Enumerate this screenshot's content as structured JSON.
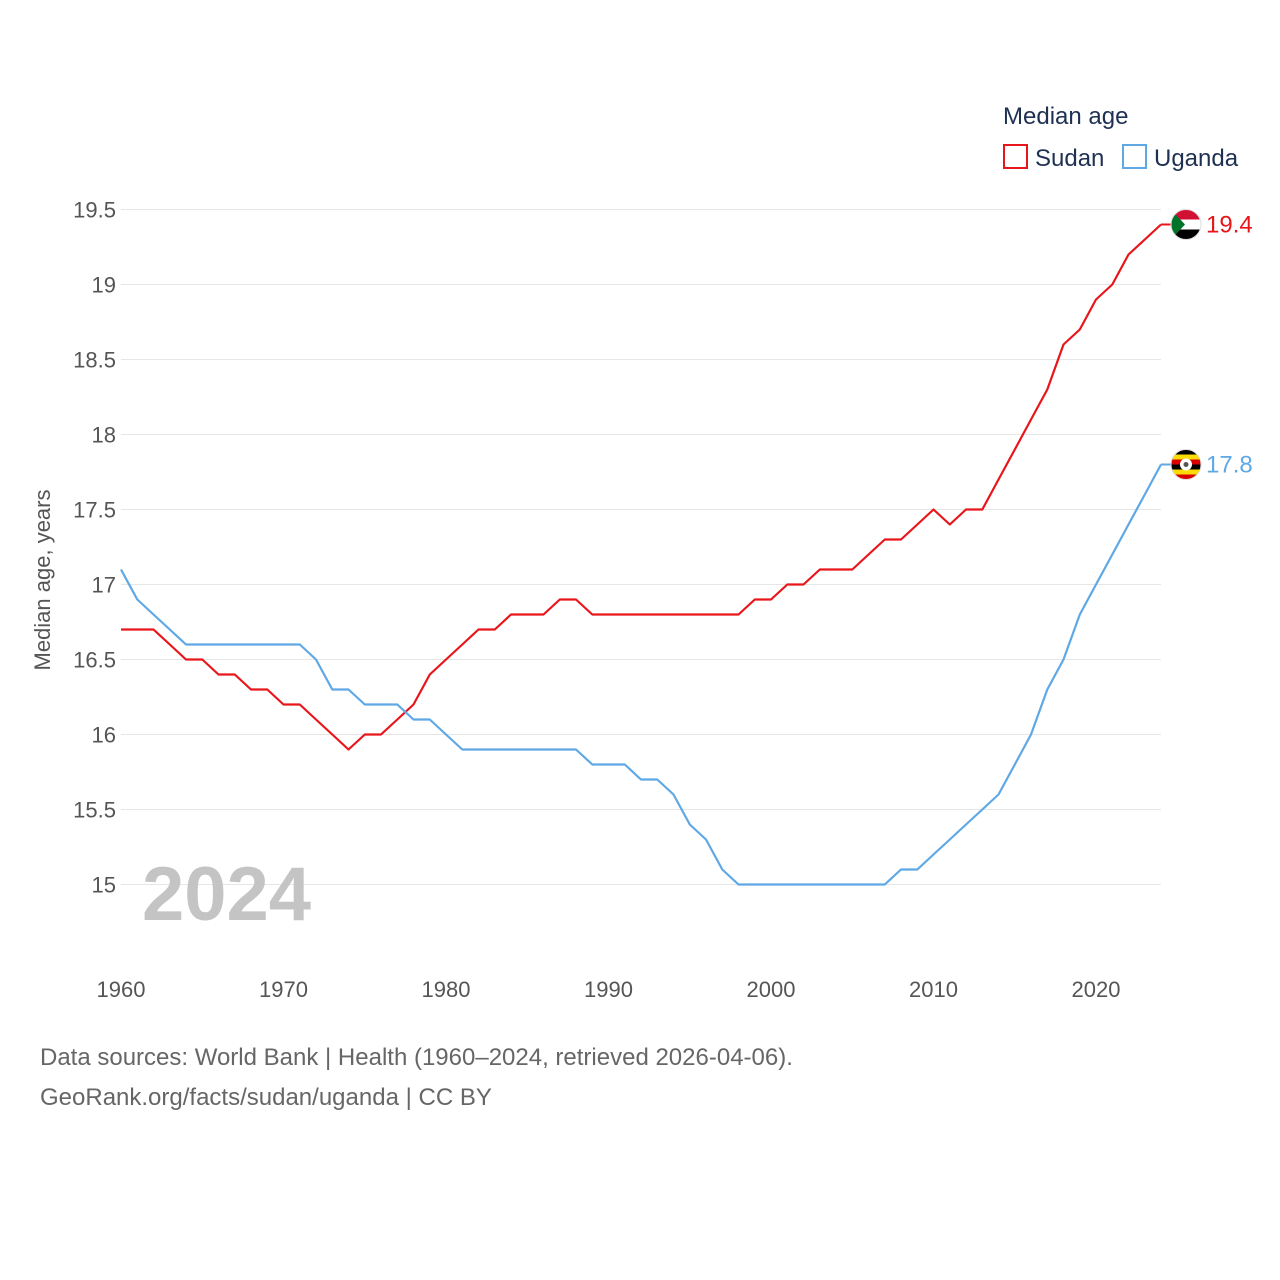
{
  "chart_data": {
    "type": "line",
    "legend_title": "Median age",
    "ylabel": "Median age, years",
    "xlabel": "",
    "xlim": [
      1960,
      2024
    ],
    "ylim": [
      14.67,
      19.67
    ],
    "x_ticks": [
      1960,
      1970,
      1980,
      1990,
      2000,
      2010,
      2020
    ],
    "y_ticks": [
      15,
      15.5,
      16,
      16.5,
      17,
      17.5,
      18,
      18.5,
      19,
      19.5
    ],
    "y_tick_labels": [
      "15",
      "15.5",
      "16",
      "16.5",
      "17",
      "17.5",
      "18",
      "18.5",
      "19",
      "19.5"
    ],
    "grid": true,
    "legend_position": "top-right",
    "watermark_year": "2024",
    "x": [
      1960,
      1961,
      1962,
      1963,
      1964,
      1965,
      1966,
      1967,
      1968,
      1969,
      1970,
      1971,
      1972,
      1973,
      1974,
      1975,
      1976,
      1977,
      1978,
      1979,
      1980,
      1981,
      1982,
      1983,
      1984,
      1985,
      1986,
      1987,
      1988,
      1989,
      1990,
      1991,
      1992,
      1993,
      1994,
      1995,
      1996,
      1997,
      1998,
      1999,
      2000,
      2001,
      2002,
      2003,
      2004,
      2005,
      2006,
      2007,
      2008,
      2009,
      2010,
      2011,
      2012,
      2013,
      2014,
      2015,
      2016,
      2017,
      2018,
      2019,
      2020,
      2021,
      2022,
      2023,
      2024
    ],
    "series": [
      {
        "name": "Sudan",
        "color": "#e8161b",
        "end_label": "19.4",
        "flag_icon": "sudan-flag-icon",
        "values": [
          16.7,
          16.7,
          16.7,
          16.6,
          16.5,
          16.5,
          16.4,
          16.4,
          16.3,
          16.3,
          16.2,
          16.2,
          16.1,
          16.0,
          15.9,
          16.0,
          16.0,
          16.1,
          16.2,
          16.4,
          16.5,
          16.6,
          16.7,
          16.7,
          16.8,
          16.8,
          16.8,
          16.9,
          16.9,
          16.8,
          16.8,
          16.8,
          16.8,
          16.8,
          16.8,
          16.8,
          16.8,
          16.8,
          16.8,
          16.9,
          16.9,
          17.0,
          17.0,
          17.1,
          17.1,
          17.1,
          17.2,
          17.3,
          17.3,
          17.4,
          17.5,
          17.4,
          17.5,
          17.5,
          17.7,
          17.9,
          18.1,
          18.3,
          18.6,
          18.7,
          18.9,
          19.0,
          19.2,
          19.3,
          19.4
        ]
      },
      {
        "name": "Uganda",
        "color": "#5ea8e5",
        "end_label": "17.8",
        "flag_icon": "uganda-flag-icon",
        "values": [
          17.1,
          16.9,
          16.8,
          16.7,
          16.6,
          16.6,
          16.6,
          16.6,
          16.6,
          16.6,
          16.6,
          16.6,
          16.5,
          16.3,
          16.3,
          16.2,
          16.2,
          16.2,
          16.1,
          16.1,
          16.0,
          15.9,
          15.9,
          15.9,
          15.9,
          15.9,
          15.9,
          15.9,
          15.9,
          15.8,
          15.8,
          15.8,
          15.7,
          15.7,
          15.6,
          15.4,
          15.3,
          15.1,
          15.0,
          15.0,
          15.0,
          15.0,
          15.0,
          15.0,
          15.0,
          15.0,
          15.0,
          15.0,
          15.1,
          15.1,
          15.2,
          15.3,
          15.4,
          15.5,
          15.6,
          15.8,
          16.0,
          16.3,
          16.5,
          16.8,
          17.0,
          17.2,
          17.4,
          17.6,
          17.8
        ]
      }
    ]
  },
  "footer": {
    "source_line": "Data sources: World Bank | Health (1960–2024, retrieved 2026-04-06).",
    "attribution_line": "GeoRank.org/facts/sudan/uganda | CC BY"
  }
}
